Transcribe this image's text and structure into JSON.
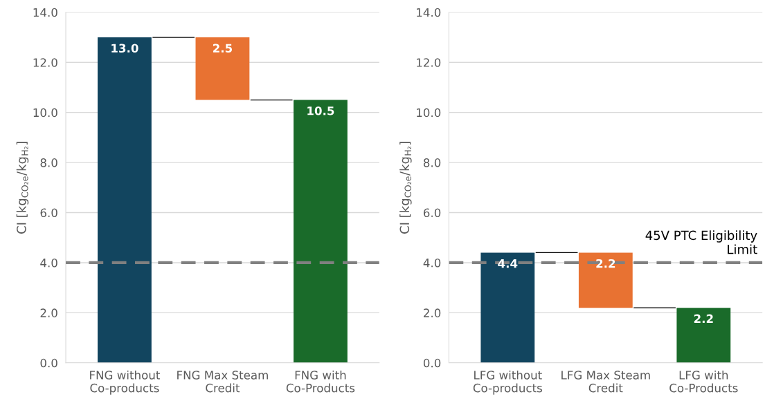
{
  "chart_data": [
    {
      "type": "bar",
      "categories": [
        "FNG without\nCo-products",
        "FNG Max Steam\nCredit",
        "FNG with\nCo-Products"
      ],
      "values": [
        13.0,
        2.5,
        10.5
      ],
      "value_labels": [
        "13.0",
        "2.5",
        "10.5"
      ],
      "base": [
        0,
        10.5,
        0
      ],
      "colors": [
        "#12455f",
        "#e87232",
        "#1a6b2a"
      ],
      "ylabel": "CI [kg$_{CO₂e}$/kg$_{H₂}$]",
      "ylim": [
        0,
        14.0
      ],
      "yticks": [
        {
          "value": 0,
          "label": "0.0"
        },
        {
          "value": 2,
          "label": "2.0"
        },
        {
          "value": 4,
          "label": "4.0"
        },
        {
          "value": 6,
          "label": "6.0"
        },
        {
          "value": 8,
          "label": "8.0"
        },
        {
          "value": 10,
          "label": "10.0"
        },
        {
          "value": 12,
          "label": "12.0"
        },
        {
          "value": 14,
          "label": "14.0"
        }
      ],
      "grid": "y",
      "ref_lines": [
        {
          "axis": "y",
          "value": 4.0,
          "color": "#808080",
          "line_style": "dashed"
        }
      ]
    },
    {
      "type": "bar",
      "categories": [
        "LFG without\nCo-products",
        "LFG Max Steam\nCredit",
        "LFG with\nCo-Products"
      ],
      "values": [
        4.4,
        2.2,
        2.2
      ],
      "value_labels": [
        "4.4",
        "2.2",
        "2.2"
      ],
      "base": [
        0,
        2.2,
        0
      ],
      "colors": [
        "#12455f",
        "#e87232",
        "#1a6b2a"
      ],
      "ylabel": "CI [kg$_{CO₂e}$/kg$_{H₂}$]",
      "ylim": [
        0,
        14.0
      ],
      "yticks": [
        {
          "value": 0,
          "label": "0.0"
        },
        {
          "value": 2,
          "label": "2.0"
        },
        {
          "value": 4,
          "label": "4.0"
        },
        {
          "value": 6,
          "label": "6.0"
        },
        {
          "value": 8,
          "label": "8.0"
        },
        {
          "value": 10,
          "label": "10.0"
        },
        {
          "value": 12,
          "label": "12.0"
        },
        {
          "value": 14,
          "label": "14.0"
        }
      ],
      "grid": "y",
      "ref_lines": [
        {
          "axis": "y",
          "value": 4.0,
          "label": "45V PTC Eligibility\nLimit",
          "color": "#808080",
          "line_style": "dashed"
        }
      ]
    }
  ]
}
